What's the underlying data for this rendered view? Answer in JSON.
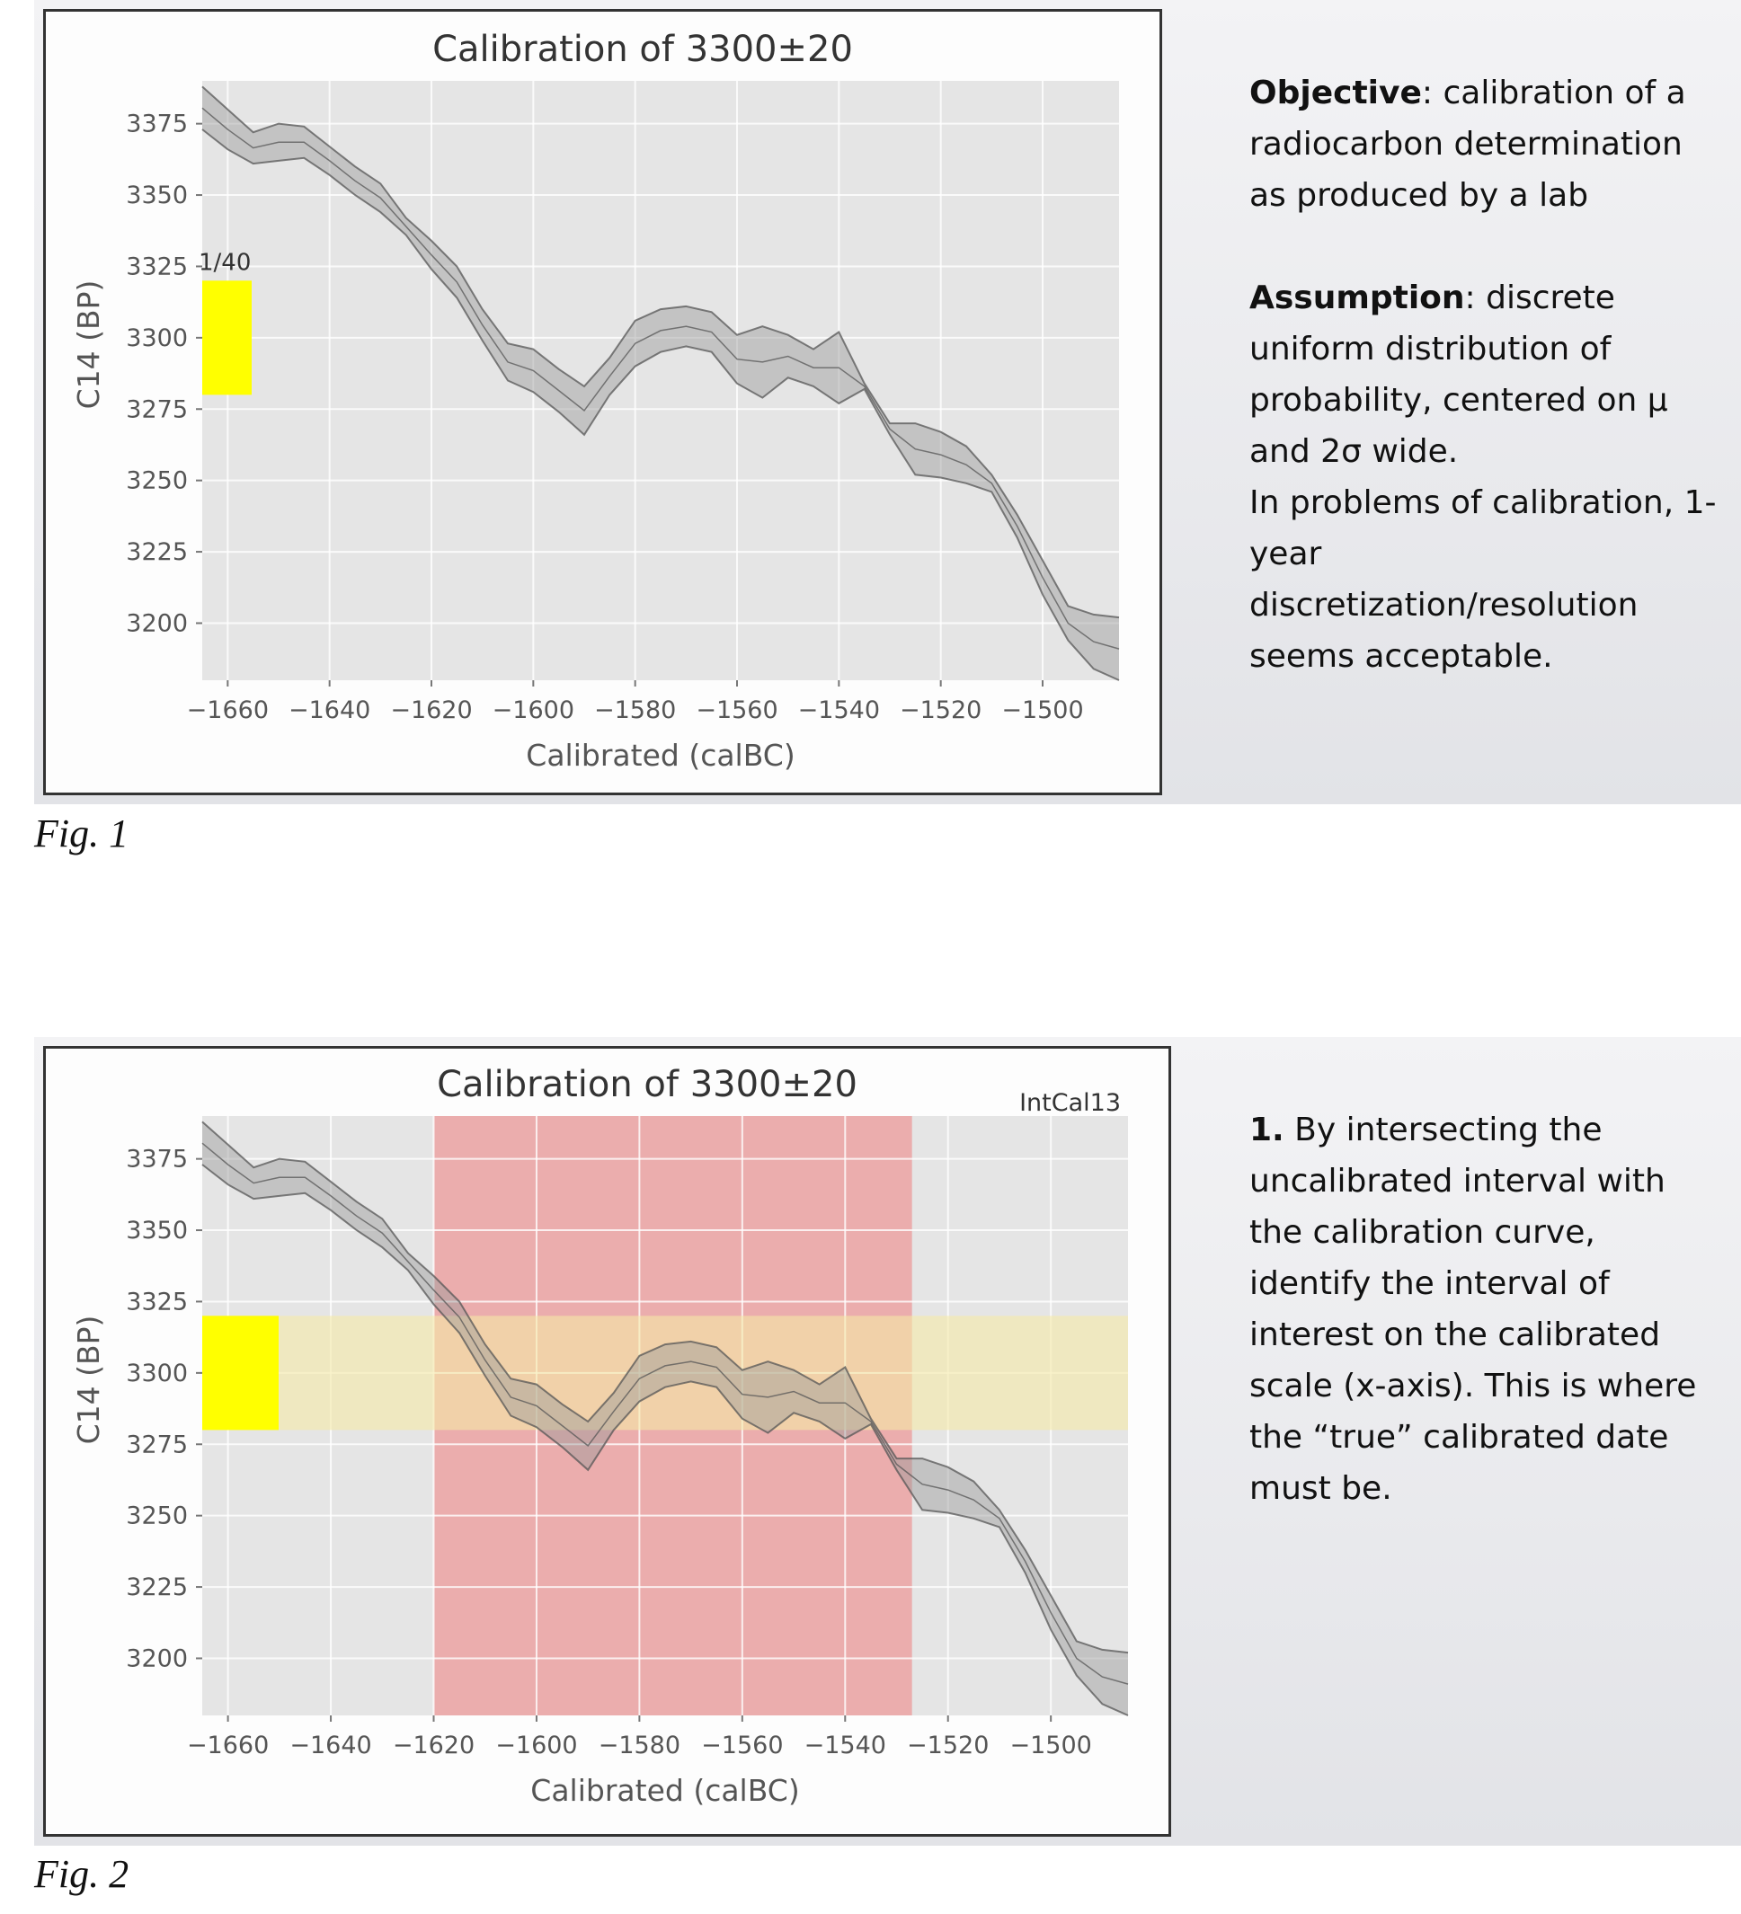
{
  "figures": [
    {
      "caption": "Fig. 1",
      "text": [
        {
          "bold": "Objective",
          "rest": ": calibration of a radiocarbon determination as produced by a lab"
        },
        {
          "bold": "Assumption",
          "rest": ": discrete uniform distribution of probability, centered on μ and 2σ wide."
        },
        {
          "bold": "",
          "rest": "In problems of calibration, 1-year discretization/resolution seems acceptable."
        }
      ]
    },
    {
      "caption": "Fig. 2",
      "text": [
        {
          "bold": "1.",
          "rest": " By intersecting the uncalibrated interval with the calibration curve, identify the interval of interest on the calibrated scale (x-axis). This is where the “true” calibrated date must be."
        }
      ]
    }
  ],
  "chart_data": [
    {
      "type": "area",
      "title": "Calibration of 3300±20",
      "xlabel": "Calibrated (calBC)",
      "ylabel": "C14 (BP)",
      "xlim": [
        -1665,
        -1485
      ],
      "ylim": [
        3180,
        3390
      ],
      "xticks": [
        -1660,
        -1640,
        -1620,
        -1600,
        -1580,
        -1560,
        -1540,
        -1520,
        -1500
      ],
      "yticks": [
        3200,
        3225,
        3250,
        3275,
        3300,
        3325,
        3350,
        3375
      ],
      "x_tick_labels": [
        "−1660",
        "−1640",
        "−1620",
        "−1600",
        "−1580",
        "−1560",
        "−1540",
        "−1520",
        "−1500"
      ],
      "y_tick_labels": [
        "3200",
        "3225",
        "3250",
        "3275",
        "3300",
        "3325",
        "3350",
        "3375"
      ],
      "grid": true,
      "curve": {
        "x": [
          -1665,
          -1660,
          -1655,
          -1650,
          -1645,
          -1640,
          -1635,
          -1630,
          -1625,
          -1620,
          -1615,
          -1610,
          -1605,
          -1600,
          -1595,
          -1590,
          -1585,
          -1580,
          -1575,
          -1570,
          -1565,
          -1560,
          -1555,
          -1550,
          -1545,
          -1540,
          -1535,
          -1530,
          -1525,
          -1520,
          -1515,
          -1510,
          -1505,
          -1500,
          -1495,
          -1490,
          -1485
        ],
        "upper": [
          3388,
          3380,
          3372,
          3375,
          3374,
          3367,
          3360,
          3354,
          3342,
          3334,
          3325,
          3310,
          3298,
          3296,
          3289,
          3283,
          3293,
          3306,
          3310,
          3311,
          3309,
          3301,
          3304,
          3301,
          3296,
          3302,
          3284,
          3270,
          3270,
          3267,
          3262,
          3252,
          3238,
          3222,
          3206,
          3203,
          3202
        ],
        "lower": [
          3373,
          3366,
          3361,
          3362,
          3363,
          3357,
          3350,
          3344,
          3336,
          3324,
          3314,
          3299,
          3285,
          3281,
          3274,
          3266,
          3280,
          3290,
          3295,
          3297,
          3295,
          3284,
          3279,
          3286,
          3283,
          3277,
          3282,
          3266,
          3252,
          3251,
          3249,
          3246,
          3230,
          3210,
          3194,
          3184,
          3180
        ]
      },
      "uncalibrated_interval": {
        "mean": 3300,
        "sigma": 20,
        "range": [
          3280,
          3320
        ],
        "label": "1/40",
        "color": "#ffff00"
      }
    },
    {
      "type": "area",
      "title": "Calibration of 3300±20",
      "annotation": "IntCal13",
      "xlabel": "Calibrated (calBC)",
      "ylabel": "C14 (BP)",
      "xlim": [
        -1665,
        -1485
      ],
      "ylim": [
        3180,
        3390
      ],
      "xticks": [
        -1660,
        -1640,
        -1620,
        -1600,
        -1580,
        -1560,
        -1540,
        -1520,
        -1500
      ],
      "yticks": [
        3200,
        3225,
        3250,
        3275,
        3300,
        3325,
        3350,
        3375
      ],
      "x_tick_labels": [
        "−1660",
        "−1640",
        "−1620",
        "−1600",
        "−1580",
        "−1560",
        "−1540",
        "−1520",
        "−1500"
      ],
      "y_tick_labels": [
        "3200",
        "3225",
        "3250",
        "3275",
        "3300",
        "3325",
        "3350",
        "3375"
      ],
      "grid": true,
      "curve": {
        "x": [
          -1665,
          -1660,
          -1655,
          -1650,
          -1645,
          -1640,
          -1635,
          -1630,
          -1625,
          -1620,
          -1615,
          -1610,
          -1605,
          -1600,
          -1595,
          -1590,
          -1585,
          -1580,
          -1575,
          -1570,
          -1565,
          -1560,
          -1555,
          -1550,
          -1545,
          -1540,
          -1535,
          -1530,
          -1525,
          -1520,
          -1515,
          -1510,
          -1505,
          -1500,
          -1495,
          -1490,
          -1485
        ],
        "upper": [
          3388,
          3380,
          3372,
          3375,
          3374,
          3367,
          3360,
          3354,
          3342,
          3334,
          3325,
          3310,
          3298,
          3296,
          3289,
          3283,
          3293,
          3306,
          3310,
          3311,
          3309,
          3301,
          3304,
          3301,
          3296,
          3302,
          3284,
          3270,
          3270,
          3267,
          3262,
          3252,
          3238,
          3222,
          3206,
          3203,
          3202
        ],
        "lower": [
          3373,
          3366,
          3361,
          3362,
          3363,
          3357,
          3350,
          3344,
          3336,
          3324,
          3314,
          3299,
          3285,
          3281,
          3274,
          3266,
          3280,
          3290,
          3295,
          3297,
          3295,
          3284,
          3279,
          3286,
          3283,
          3277,
          3282,
          3266,
          3252,
          3251,
          3249,
          3246,
          3230,
          3210,
          3194,
          3184,
          3180
        ]
      },
      "uncalibrated_interval": {
        "mean": 3300,
        "sigma": 20,
        "range": [
          3280,
          3320
        ],
        "color": "#ffff00"
      },
      "calibrated_interval": {
        "range": [
          -1620,
          -1527
        ],
        "color": "#f08080"
      }
    }
  ]
}
